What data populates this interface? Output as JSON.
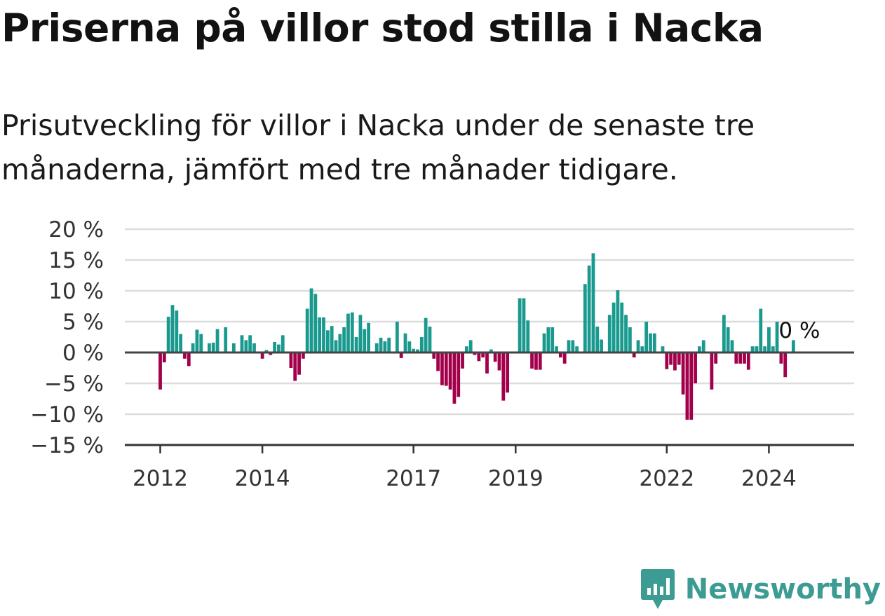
{
  "title": "Priserna på villor stod stilla i Nacka",
  "subtitle": "Prisutveckling för villor i Nacka under de senaste tre månaderna, jämfört med tre månader tidigare.",
  "brand": {
    "name": "Newsworthy",
    "color": "#3c9b93"
  },
  "chart_data": {
    "type": "bar",
    "ylim": [
      -15,
      20
    ],
    "y_ticks": [
      20,
      15,
      10,
      5,
      0,
      -5,
      -10,
      -15
    ],
    "y_tick_labels": [
      "20 %",
      "15 %",
      "10 %",
      "5 %",
      "0 %",
      "−5 %",
      "−10 %",
      "−15 %"
    ],
    "x_ticks": [
      {
        "label": "2012",
        "index": 0
      },
      {
        "label": "2014",
        "index": 25
      },
      {
        "label": "2017",
        "index": 62
      },
      {
        "label": "2019",
        "index": 87
      },
      {
        "label": "2022",
        "index": 124
      },
      {
        "label": "2024",
        "index": 149
      }
    ],
    "colors": {
      "positive": "#1a9a8f",
      "negative": "#a3004b"
    },
    "end_label": "0 %",
    "series": [
      {
        "values": [
          -6,
          -1.6,
          5.8,
          7.7,
          6.8,
          3,
          -1,
          -2.2,
          1.5,
          3.7,
          3,
          0,
          1.5,
          1.6,
          3.8,
          0,
          4.1,
          0,
          1.5,
          0,
          2.8,
          2,
          2.8,
          1.5,
          0,
          -1,
          0.4,
          -0.4,
          1.7,
          1.3,
          2.8,
          0,
          -2.5,
          -4.6,
          -3.6,
          -1,
          7.1,
          10.4,
          9.5,
          5.7,
          5.7,
          3.6,
          4.3,
          2,
          3,
          4.1,
          6.3,
          6.5,
          2.5,
          6.1,
          3.8,
          4.8,
          0,
          1.5,
          2.4,
          1.8,
          2.4,
          0,
          5,
          -0.9,
          3.1,
          1.8,
          0.6,
          0.5,
          2.5,
          5.6,
          4.2,
          -1,
          -3,
          -5.3,
          -5.4,
          -6,
          -8.3,
          -7.2,
          -2.6,
          1,
          2,
          -0.4,
          -1.4,
          -0.8,
          -3.4,
          0.5,
          -1.5,
          -2.9,
          -7.8,
          -6.5,
          0,
          0,
          8.8,
          8.8,
          5.2,
          -2.6,
          -2.8,
          -2.8,
          3.1,
          4.1,
          4.1,
          1,
          -0.8,
          -1.8,
          2,
          2,
          1,
          0,
          11.1,
          14.1,
          16.1,
          4.2,
          2.1,
          0,
          6.1,
          8.1,
          10.1,
          8.1,
          6.1,
          4.1,
          -0.8,
          2,
          1,
          5,
          3.1,
          3.1,
          0,
          1,
          -2.7,
          -2,
          -2.9,
          -2,
          -6.8,
          -10.9,
          -10.9,
          -5,
          1,
          2,
          0,
          -6,
          -1.8,
          0,
          6.1,
          4.1,
          2,
          -1.8,
          -1.8,
          -1.8,
          -2.8,
          1,
          1,
          7.1,
          1,
          4.1,
          1,
          5,
          -1.8,
          -4,
          0,
          2
        ]
      }
    ]
  }
}
